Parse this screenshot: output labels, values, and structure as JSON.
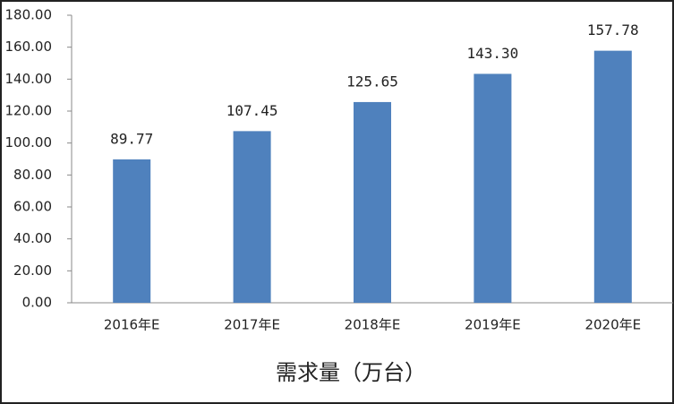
{
  "chart_data": {
    "type": "bar",
    "categories": [
      "2016年E",
      "2017年E",
      "2018年E",
      "2019年E",
      "2020年E"
    ],
    "values": [
      89.77,
      107.45,
      125.65,
      143.3,
      157.78
    ],
    "value_labels": [
      "89.77",
      "107.45",
      "125.65",
      "143.30",
      "157.78"
    ],
    "color": "#4f81bd",
    "ylim": [
      0,
      180
    ],
    "yticks": [
      {
        "value": 0,
        "label": "0.00"
      },
      {
        "value": 20,
        "label": "20.00"
      },
      {
        "value": 40,
        "label": "40.00"
      },
      {
        "value": 60,
        "label": "60.00"
      },
      {
        "value": 80,
        "label": "80.00"
      },
      {
        "value": 100,
        "label": "100.00"
      },
      {
        "value": 120,
        "label": "120.00"
      },
      {
        "value": 140,
        "label": "140.00"
      },
      {
        "value": 160,
        "label": "160.00"
      },
      {
        "value": 180,
        "label": "180.00"
      }
    ],
    "xlabel": "需求量（万台）",
    "grid": false
  }
}
